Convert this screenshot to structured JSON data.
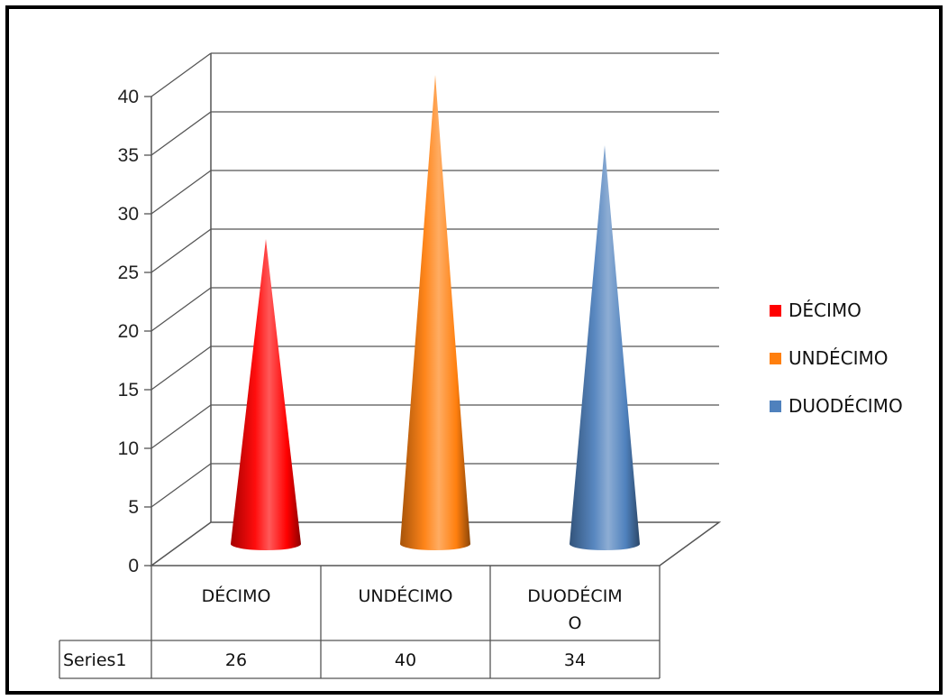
{
  "chart_data": {
    "type": "bar",
    "style": "3d-cone",
    "categories": [
      "DÉCIMO",
      "UNDÉCIMO",
      "DUODÉCIM O"
    ],
    "category_label_lines": [
      [
        "DÉCIMO"
      ],
      [
        "UNDÉCIMO"
      ],
      [
        "DUODÉCIM",
        "O"
      ]
    ],
    "legend_labels": [
      "DÉCIMO",
      "UNDÉCIMO",
      "DUODÉCIMO"
    ],
    "series": [
      {
        "name": "Series1",
        "values": [
          26,
          40,
          34
        ]
      }
    ],
    "value_labels": [
      "26",
      "40",
      "34"
    ],
    "colors": [
      "#ff0000",
      "#ff7f0e",
      "#4f81bd"
    ],
    "ylim": [
      0,
      40
    ],
    "yticks": [
      0,
      5,
      10,
      15,
      20,
      25,
      30,
      35,
      40
    ],
    "grid": true,
    "legend_position": "right",
    "data_table": true
  }
}
